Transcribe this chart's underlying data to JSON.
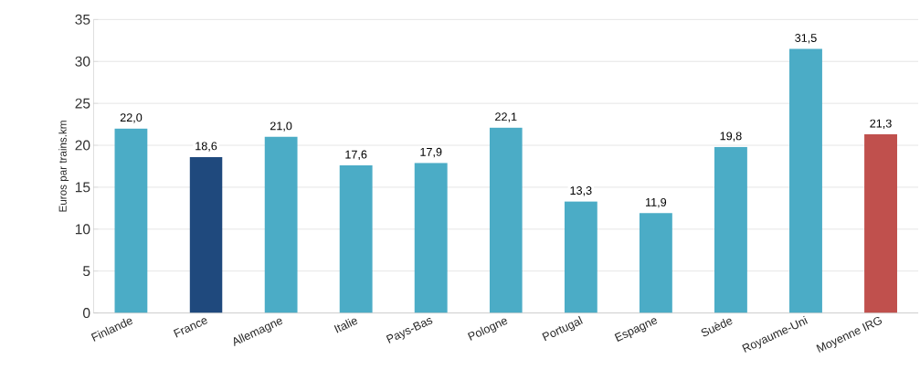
{
  "chart_data": {
    "type": "bar",
    "ylabel": "Euros par trains.km",
    "categories": [
      "Finlande",
      "France",
      "Allemagne",
      "Italie",
      "Pays-Bas",
      "Pologne",
      "Portugal",
      "Espagne",
      "Suède",
      "Royaume-Uni",
      "Moyenne IRG"
    ],
    "values": [
      22.0,
      18.6,
      21.0,
      17.6,
      17.9,
      22.1,
      13.3,
      11.9,
      19.8,
      31.5,
      21.3
    ],
    "value_labels": [
      "22,0",
      "18,6",
      "21,0",
      "17,6",
      "17,9",
      "22,1",
      "13,3",
      "11,9",
      "19,8",
      "31,5",
      "21,3"
    ],
    "colors": [
      "#4bacc6",
      "#1f497d",
      "#4bacc6",
      "#4bacc6",
      "#4bacc6",
      "#4bacc6",
      "#4bacc6",
      "#4bacc6",
      "#4bacc6",
      "#4bacc6",
      "#c0504d"
    ],
    "ylim": [
      0,
      35
    ],
    "yticks": [
      0,
      5,
      10,
      15,
      20,
      25,
      30,
      35
    ],
    "grid": "y"
  }
}
